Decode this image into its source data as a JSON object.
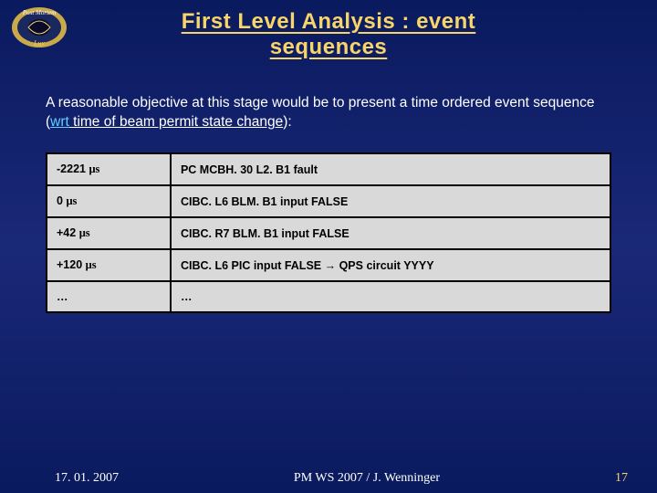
{
  "logo": {
    "outer_fill": "#1a2860",
    "ring_fill": "#c9a94a",
    "text_top": "Post Mortem",
    "text_bottom": "Lux"
  },
  "title_line1": "First Level Analysis : event",
  "title_line2": "sequences",
  "intro_prefix": "A reasonable objective at this stage would be to present a time ordered event sequence (",
  "intro_wrt": "wrt",
  "intro_rest": " time of beam permit state change",
  "intro_suffix": "):",
  "table": {
    "rows": [
      {
        "time": "-2221 ",
        "time_unit": "μs",
        "desc": "PC MCBH. 30 L2. B1 fault"
      },
      {
        "time": "0 ",
        "time_unit": "μs",
        "desc": "CIBC. L6 BLM. B1 input FALSE"
      },
      {
        "time": "+42 ",
        "time_unit": "μs",
        "desc": "CIBC. R7 BLM. B1 input FALSE"
      },
      {
        "time": "+120 ",
        "time_unit": "μs",
        "desc": "CIBC. L6 PIC input FALSE → QPS circuit YYYY"
      },
      {
        "time": "…",
        "time_unit": "",
        "desc": "…"
      }
    ]
  },
  "footer": {
    "date": "17. 01. 2007",
    "center": "PM WS 2007 / J. Wenninger",
    "page": "17"
  },
  "colors": {
    "title": "#f8d568",
    "bg_top": "#0a1a5e",
    "table_bg": "#d9d9d9"
  }
}
